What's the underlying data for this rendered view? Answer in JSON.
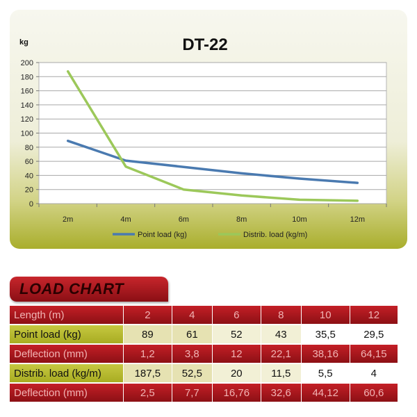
{
  "chart_data": {
    "type": "line",
    "title": "DT-22",
    "ylabel": "kg",
    "xlabel": "",
    "categories": [
      "2m",
      "4m",
      "6m",
      "8m",
      "10m",
      "12m"
    ],
    "yticks": [
      0,
      20,
      40,
      60,
      80,
      100,
      120,
      140,
      160,
      180,
      200
    ],
    "ylim": [
      0,
      200
    ],
    "grid": true,
    "legend_position": "bottom",
    "series": [
      {
        "name": "Point load  (kg)",
        "color": "#4a7ab0",
        "values": [
          89,
          61,
          52,
          43,
          35.5,
          29.5
        ]
      },
      {
        "name": "Distrib. load  (kg/m)",
        "color": "#9cc85a",
        "values": [
          187.5,
          52.5,
          20,
          11.5,
          5.5,
          4
        ]
      }
    ]
  },
  "load_chart": {
    "heading": "LOAD CHART",
    "rows": [
      {
        "label": "Length (m)",
        "cells": [
          "2",
          "4",
          "6",
          "8",
          "10",
          "12"
        ]
      },
      {
        "label": "Point load (kg)",
        "cells": [
          "89",
          "61",
          "52",
          "43",
          "35,5",
          "29,5"
        ]
      },
      {
        "label": "Deflection (mm)",
        "cells": [
          "1,2",
          "3,8",
          "12",
          "22,1",
          "38,16",
          "64,15"
        ]
      },
      {
        "label": "Distrib. load (kg/m)",
        "cells": [
          "187,5",
          "52,5",
          "20",
          "11,5",
          "5,5",
          "4"
        ]
      },
      {
        "label": "Deflection (mm)",
        "cells": [
          "2,5",
          "7,7",
          "16,76",
          "32,6",
          "44,12",
          "60,6"
        ]
      }
    ]
  }
}
